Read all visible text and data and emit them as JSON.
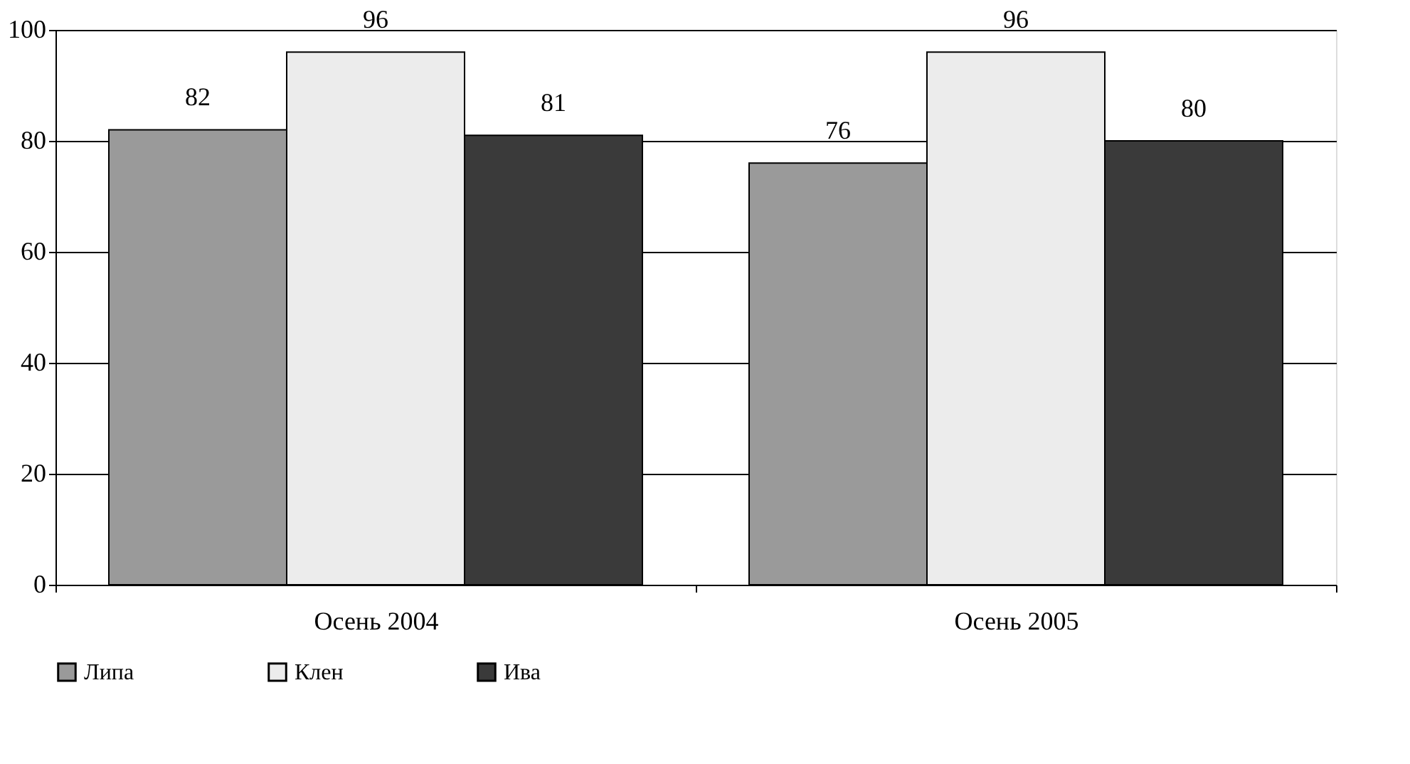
{
  "chart_data": {
    "type": "bar",
    "categories": [
      "Осень 2004",
      "Осень 2005"
    ],
    "series": [
      {
        "name": "Липа",
        "color": "#9a9a9a",
        "values": [
          82,
          76
        ]
      },
      {
        "name": "Клен",
        "color": "#ececec",
        "values": [
          96,
          96
        ]
      },
      {
        "name": "Ива",
        "color": "#3a3a3a",
        "values": [
          81,
          80
        ]
      }
    ],
    "ylim": [
      0,
      100
    ],
    "yticks": [
      0,
      20,
      40,
      60,
      80,
      100
    ],
    "grid": "y",
    "legend": "bottom",
    "data_labels": true
  }
}
